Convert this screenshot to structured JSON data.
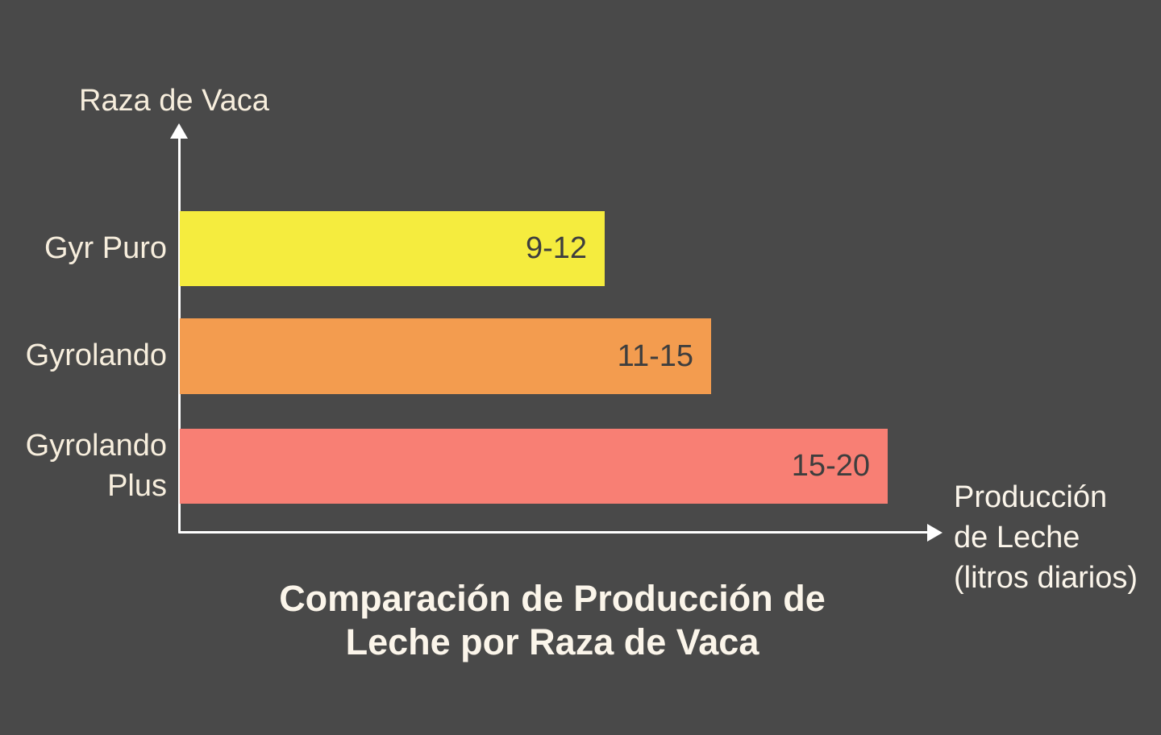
{
  "background_color": "#494949",
  "chart_data": {
    "type": "bar",
    "orientation": "horizontal",
    "title": "Comparación de Producción de Leche por Raza de Vaca",
    "title_lines": [
      "Comparación de Producción de",
      "Leche por Raza de Vaca"
    ],
    "xlabel": "Producción de Leche (litros diarios)",
    "xlabel_lines": [
      "Producción",
      "de Leche",
      "(litros diarios)"
    ],
    "ylabel": "Raza de Vaca",
    "categories": [
      "Gyr Puro",
      "Gyrolando",
      "Gyrolando Plus"
    ],
    "bars": [
      {
        "label": "Gyr Puro",
        "value_label": "9-12",
        "min": 9,
        "max": 12,
        "color": "#f5ec3e"
      },
      {
        "label": "Gyrolando",
        "value_label": "11-15",
        "min": 11,
        "max": 15,
        "color": "#f39c4f"
      },
      {
        "label": "Gyrolando Plus",
        "value_label": "15-20",
        "min": 15,
        "max": 20,
        "color": "#f87f74"
      }
    ],
    "xlim": [
      0,
      20
    ],
    "grid": false,
    "legend": "none",
    "axis_color": "#ffffff",
    "label_color": "#f7eedd",
    "title_color": "#fbf5ea",
    "value_text_color": "#3e3e3e"
  }
}
